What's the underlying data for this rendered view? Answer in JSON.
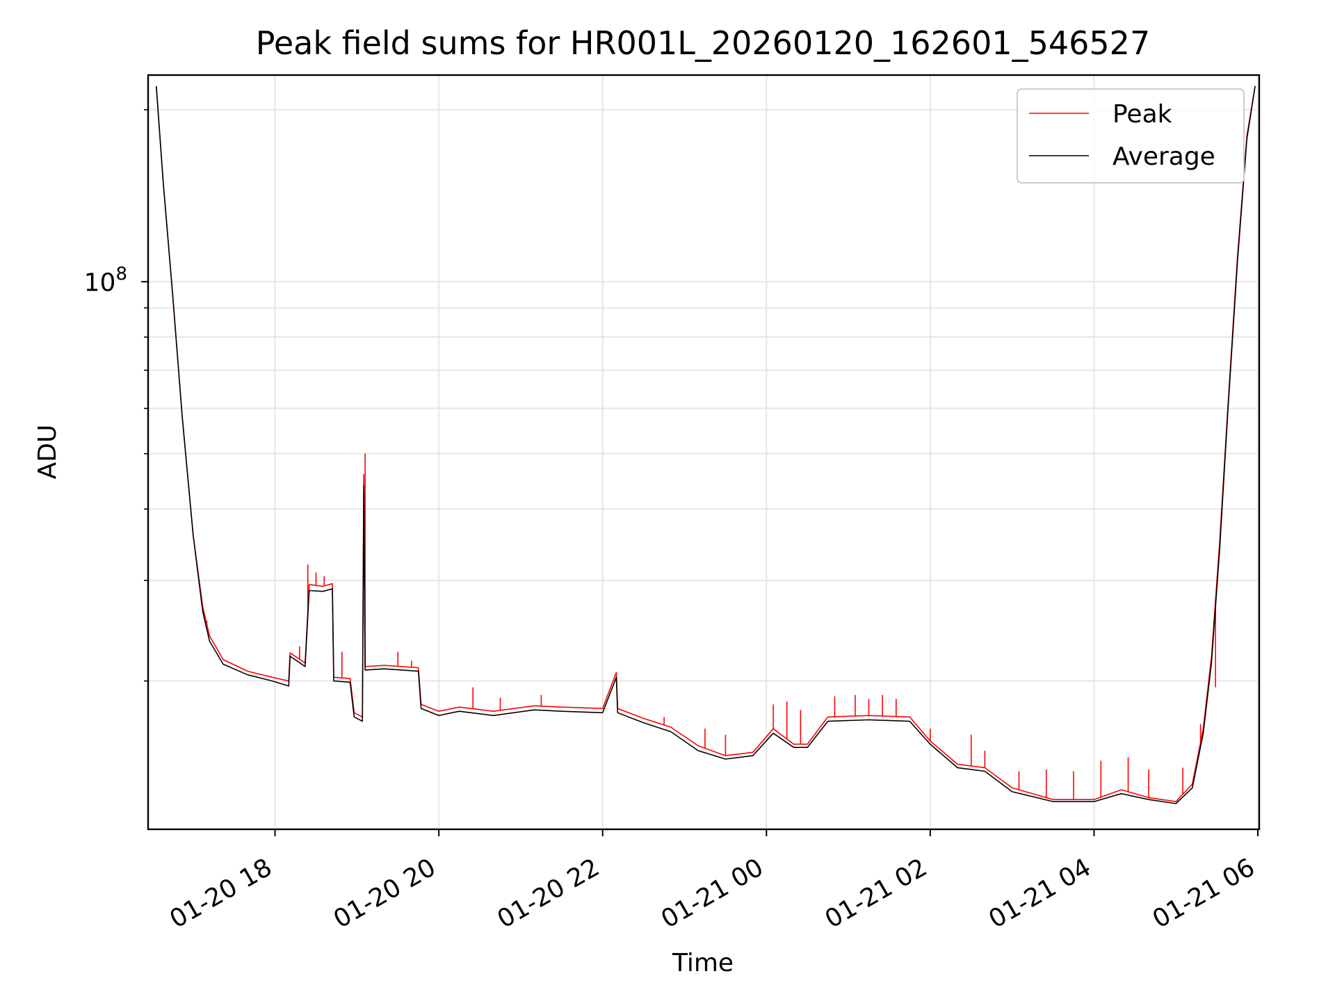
{
  "colors": {
    "peak": "#ff0000",
    "average": "#000000",
    "grid": "#e6e6e6",
    "legend_border": "#cccccc"
  },
  "chart_data": {
    "type": "line",
    "title": "Peak field sums for HR001L_20260120_162601_546527",
    "xlabel": "Time",
    "ylabel": "ADU",
    "y_scale": "log",
    "ylim": [
      11000000,
      230000000
    ],
    "xlim": [
      "2026-01-20 16:27",
      "2026-01-21 06:01"
    ],
    "grid": true,
    "legend_position": "top-right",
    "x_ticks": [
      {
        "t": "2026-01-20 18:00",
        "label": "01-20 18"
      },
      {
        "t": "2026-01-20 20:00",
        "label": "01-20 20"
      },
      {
        "t": "2026-01-20 22:00",
        "label": "01-20 22"
      },
      {
        "t": "2026-01-21 00:00",
        "label": "01-21 00"
      },
      {
        "t": "2026-01-21 02:00",
        "label": "01-21 02"
      },
      {
        "t": "2026-01-21 04:00",
        "label": "01-21 04"
      },
      {
        "t": "2026-01-21 06:00",
        "label": "01-21 06"
      }
    ],
    "y_major_ticks": [
      {
        "value": 100000000,
        "base": "10",
        "exp": "8"
      }
    ],
    "y_minor_ticks": [
      20000000,
      30000000,
      40000000,
      50000000,
      60000000,
      70000000,
      80000000,
      90000000,
      200000000
    ],
    "series": [
      {
        "name": "Peak",
        "color": "#ff0000",
        "points": [
          [
            "2026-01-20 16:33",
            220000000
          ],
          [
            "2026-01-20 16:38",
            150000000
          ],
          [
            "2026-01-20 16:45",
            95000000
          ],
          [
            "2026-01-20 16:52",
            58000000
          ],
          [
            "2026-01-20 17:00",
            36000000
          ],
          [
            "2026-01-20 17:07",
            27000000
          ],
          [
            "2026-01-20 17:12",
            24000000
          ],
          [
            "2026-01-20 17:22",
            21800000
          ],
          [
            "2026-01-20 17:40",
            20800000
          ],
          [
            "2026-01-20 17:58",
            20300000
          ],
          [
            "2026-01-20 18:10",
            20000000
          ],
          [
            "2026-01-20 18:11",
            22400000
          ],
          [
            "2026-01-20 18:22",
            21500000
          ],
          [
            "2026-01-20 18:25",
            29500000
          ],
          [
            "2026-01-20 18:35",
            29300000
          ],
          [
            "2026-01-20 18:42",
            29600000
          ],
          [
            "2026-01-20 18:43",
            20300000
          ],
          [
            "2026-01-20 18:55",
            20200000
          ],
          [
            "2026-01-20 18:58",
            17600000
          ],
          [
            "2026-01-20 19:04",
            17300000
          ],
          [
            "2026-01-20 19:05",
            46000000
          ],
          [
            "2026-01-20 19:06",
            21200000
          ],
          [
            "2026-01-20 19:20",
            21300000
          ],
          [
            "2026-01-20 19:45",
            21100000
          ],
          [
            "2026-01-20 19:47",
            18200000
          ],
          [
            "2026-01-20 20:00",
            17700000
          ],
          [
            "2026-01-20 20:15",
            18000000
          ],
          [
            "2026-01-20 20:40",
            17700000
          ],
          [
            "2026-01-20 21:10",
            18100000
          ],
          [
            "2026-01-20 21:30",
            18000000
          ],
          [
            "2026-01-20 22:00",
            17900000
          ],
          [
            "2026-01-20 22:10",
            20700000
          ],
          [
            "2026-01-20 22:11",
            17900000
          ],
          [
            "2026-01-20 22:30",
            17200000
          ],
          [
            "2026-01-20 22:50",
            16600000
          ],
          [
            "2026-01-20 23:10",
            15400000
          ],
          [
            "2026-01-20 23:30",
            14800000
          ],
          [
            "2026-01-20 23:50",
            15000000
          ],
          [
            "2026-01-21 00:05",
            16500000
          ],
          [
            "2026-01-21 00:20",
            15500000
          ],
          [
            "2026-01-21 00:30",
            15500000
          ],
          [
            "2026-01-21 00:45",
            17300000
          ],
          [
            "2026-01-21 01:15",
            17400000
          ],
          [
            "2026-01-21 01:45",
            17300000
          ],
          [
            "2026-01-21 02:00",
            15700000
          ],
          [
            "2026-01-21 02:20",
            14300000
          ],
          [
            "2026-01-21 02:40",
            14100000
          ],
          [
            "2026-01-21 03:00",
            13000000
          ],
          [
            "2026-01-21 03:30",
            12400000
          ],
          [
            "2026-01-21 04:00",
            12400000
          ],
          [
            "2026-01-21 04:20",
            12900000
          ],
          [
            "2026-01-21 04:40",
            12500000
          ],
          [
            "2026-01-21 05:00",
            12300000
          ],
          [
            "2026-01-21 05:12",
            13200000
          ],
          [
            "2026-01-21 05:20",
            16500000
          ],
          [
            "2026-01-21 05:26",
            22000000
          ],
          [
            "2026-01-21 05:32",
            35000000
          ],
          [
            "2026-01-21 05:38",
            60000000
          ],
          [
            "2026-01-21 05:45",
            110000000
          ],
          [
            "2026-01-21 05:52",
            180000000
          ],
          [
            "2026-01-21 05:58",
            220000000
          ]
        ],
        "spikes": [
          [
            "2026-01-20 17:10",
            25500000
          ],
          [
            "2026-01-20 18:18",
            23000000
          ],
          [
            "2026-01-20 18:24",
            32000000
          ],
          [
            "2026-01-20 18:30",
            31000000
          ],
          [
            "2026-01-20 18:36",
            30500000
          ],
          [
            "2026-01-20 18:49",
            22500000
          ],
          [
            "2026-01-20 19:06",
            50000000
          ],
          [
            "2026-01-20 19:30",
            22500000
          ],
          [
            "2026-01-20 19:40",
            21700000
          ],
          [
            "2026-01-20 20:25",
            19500000
          ],
          [
            "2026-01-20 20:45",
            18700000
          ],
          [
            "2026-01-20 21:15",
            18900000
          ],
          [
            "2026-01-20 22:05",
            19300000
          ],
          [
            "2026-01-20 22:45",
            17300000
          ],
          [
            "2026-01-20 23:15",
            16500000
          ],
          [
            "2026-01-20 23:30",
            16100000
          ],
          [
            "2026-01-21 00:05",
            18200000
          ],
          [
            "2026-01-21 00:15",
            18400000
          ],
          [
            "2026-01-21 00:25",
            17800000
          ],
          [
            "2026-01-21 00:50",
            18800000
          ],
          [
            "2026-01-21 01:05",
            18900000
          ],
          [
            "2026-01-21 01:15",
            18600000
          ],
          [
            "2026-01-21 01:25",
            18900000
          ],
          [
            "2026-01-21 01:35",
            18600000
          ],
          [
            "2026-01-21 02:00",
            16500000
          ],
          [
            "2026-01-21 02:30",
            16100000
          ],
          [
            "2026-01-21 02:40",
            15100000
          ],
          [
            "2026-01-21 03:05",
            13900000
          ],
          [
            "2026-01-21 03:25",
            14000000
          ],
          [
            "2026-01-21 03:45",
            13900000
          ],
          [
            "2026-01-21 04:05",
            14500000
          ],
          [
            "2026-01-21 04:25",
            14700000
          ],
          [
            "2026-01-21 04:40",
            14000000
          ],
          [
            "2026-01-21 05:05",
            14100000
          ],
          [
            "2026-01-21 05:18",
            16800000
          ],
          [
            "2026-01-21 05:29",
            19500000
          ]
        ]
      },
      {
        "name": "Average",
        "color": "#000000",
        "points": [
          [
            "2026-01-20 16:33",
            220000000
          ],
          [
            "2026-01-20 16:38",
            150000000
          ],
          [
            "2026-01-20 16:45",
            95000000
          ],
          [
            "2026-01-20 16:52",
            58000000
          ],
          [
            "2026-01-20 17:00",
            36000000
          ],
          [
            "2026-01-20 17:07",
            26500000
          ],
          [
            "2026-01-20 17:12",
            23500000
          ],
          [
            "2026-01-20 17:22",
            21400000
          ],
          [
            "2026-01-20 17:40",
            20500000
          ],
          [
            "2026-01-20 17:58",
            20000000
          ],
          [
            "2026-01-20 18:10",
            19600000
          ],
          [
            "2026-01-20 18:11",
            22100000
          ],
          [
            "2026-01-20 18:22",
            21200000
          ],
          [
            "2026-01-20 18:25",
            28800000
          ],
          [
            "2026-01-20 18:35",
            28700000
          ],
          [
            "2026-01-20 18:42",
            29000000
          ],
          [
            "2026-01-20 18:43",
            20000000
          ],
          [
            "2026-01-20 18:55",
            19900000
          ],
          [
            "2026-01-20 18:58",
            17300000
          ],
          [
            "2026-01-20 19:04",
            17000000
          ],
          [
            "2026-01-20 19:05",
            44000000
          ],
          [
            "2026-01-20 19:06",
            20900000
          ],
          [
            "2026-01-20 19:20",
            21000000
          ],
          [
            "2026-01-20 19:45",
            20800000
          ],
          [
            "2026-01-20 19:47",
            17900000
          ],
          [
            "2026-01-20 20:00",
            17400000
          ],
          [
            "2026-01-20 20:15",
            17700000
          ],
          [
            "2026-01-20 20:40",
            17400000
          ],
          [
            "2026-01-20 21:10",
            17800000
          ],
          [
            "2026-01-20 21:30",
            17700000
          ],
          [
            "2026-01-20 22:00",
            17600000
          ],
          [
            "2026-01-20 22:10",
            20300000
          ],
          [
            "2026-01-20 22:11",
            17600000
          ],
          [
            "2026-01-20 22:30",
            16900000
          ],
          [
            "2026-01-20 22:50",
            16300000
          ],
          [
            "2026-01-20 23:10",
            15100000
          ],
          [
            "2026-01-20 23:30",
            14600000
          ],
          [
            "2026-01-20 23:50",
            14800000
          ],
          [
            "2026-01-21 00:05",
            16200000
          ],
          [
            "2026-01-21 00:20",
            15300000
          ],
          [
            "2026-01-21 00:30",
            15300000
          ],
          [
            "2026-01-21 00:45",
            17000000
          ],
          [
            "2026-01-21 01:15",
            17100000
          ],
          [
            "2026-01-21 01:45",
            17000000
          ],
          [
            "2026-01-21 02:00",
            15500000
          ],
          [
            "2026-01-21 02:20",
            14100000
          ],
          [
            "2026-01-21 02:40",
            13900000
          ],
          [
            "2026-01-21 03:00",
            12800000
          ],
          [
            "2026-01-21 03:30",
            12300000
          ],
          [
            "2026-01-21 04:00",
            12300000
          ],
          [
            "2026-01-21 04:20",
            12700000
          ],
          [
            "2026-01-21 04:40",
            12400000
          ],
          [
            "2026-01-21 05:00",
            12200000
          ],
          [
            "2026-01-21 05:12",
            13000000
          ],
          [
            "2026-01-21 05:20",
            16200000
          ],
          [
            "2026-01-21 05:26",
            21500000
          ],
          [
            "2026-01-21 05:32",
            34000000
          ],
          [
            "2026-01-21 05:38",
            59000000
          ],
          [
            "2026-01-21 05:45",
            108000000
          ],
          [
            "2026-01-21 05:52",
            178000000
          ],
          [
            "2026-01-21 05:58",
            220000000
          ]
        ]
      }
    ]
  }
}
